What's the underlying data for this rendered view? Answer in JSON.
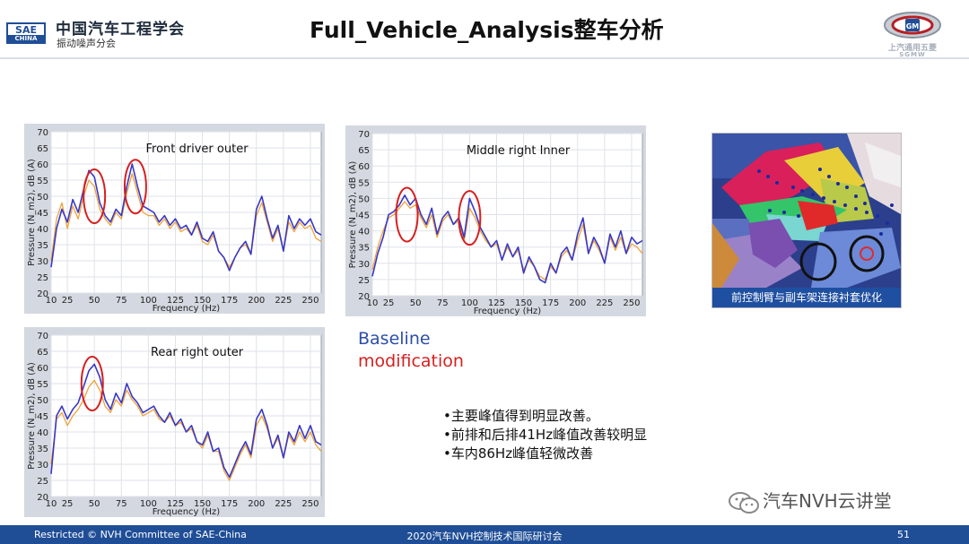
{
  "header": {
    "logo_top": "SAE",
    "logo_bottom": "CHINA",
    "org_name": "中国汽车工程学会",
    "org_sub": "振动噪声分会",
    "title": "Full_Vehicle_Analysis整车分析",
    "brand_cn": "上汽通用五菱",
    "brand_en": "SGMW",
    "brand_badge": "GM"
  },
  "colors": {
    "baseline": "#3838c8",
    "modification": "#f0a23a",
    "highlight_ellipse": "#d62020",
    "footer_bg": "#1f4e96",
    "caption_bg": "#1f4fa0"
  },
  "chart_data": [
    {
      "type": "line",
      "title": "Front driver outer",
      "xlabel": "Frequency (Hz)",
      "ylabel": "Pressure (N_m2), dB (A)",
      "xlim": [
        10,
        260
      ],
      "ylim": [
        20,
        70
      ],
      "xticks": [
        10,
        25,
        50,
        75,
        100,
        125,
        150,
        175,
        200,
        225,
        250
      ],
      "yticks": [
        20,
        25,
        30,
        35,
        40,
        45,
        50,
        55,
        60,
        65,
        70
      ],
      "grid": true,
      "x": [
        10,
        15,
        20,
        25,
        30,
        35,
        40,
        45,
        50,
        55,
        60,
        65,
        70,
        75,
        80,
        85,
        90,
        95,
        100,
        105,
        110,
        115,
        120,
        125,
        130,
        135,
        140,
        145,
        150,
        155,
        160,
        165,
        170,
        175,
        180,
        185,
        190,
        195,
        200,
        205,
        210,
        215,
        220,
        225,
        230,
        235,
        240,
        245,
        250,
        255,
        260
      ],
      "series": [
        {
          "name": "Baseline",
          "values": [
            28,
            40,
            46,
            42,
            49,
            45,
            52,
            58,
            56,
            48,
            44,
            42,
            46,
            44,
            53,
            60,
            53,
            47,
            46,
            45,
            42,
            44,
            41,
            43,
            40,
            41,
            38,
            42,
            37,
            36,
            39,
            33,
            31,
            27,
            31,
            34,
            36,
            32,
            46,
            50,
            43,
            37,
            41,
            33,
            44,
            40,
            43,
            41,
            43,
            39,
            38
          ]
        },
        {
          "name": "Modification",
          "values": [
            30,
            43,
            48,
            40,
            47,
            43,
            50,
            55,
            53,
            46,
            43,
            41,
            45,
            43,
            51,
            57,
            51,
            45,
            44,
            44,
            41,
            43,
            40,
            42,
            39,
            40,
            38,
            41,
            36,
            35,
            38,
            33,
            31,
            28,
            31,
            34,
            35,
            32,
            44,
            48,
            42,
            36,
            40,
            33,
            42,
            39,
            42,
            40,
            41,
            37,
            36
          ]
        }
      ],
      "highlights": [
        [
          50,
          50
        ],
        [
          88,
          53
        ]
      ]
    },
    {
      "type": "line",
      "title": "Middle right Inner",
      "xlabel": "Frequency (Hz)",
      "ylabel": "Pressure (N_m2), dB (A)",
      "xlim": [
        10,
        260
      ],
      "ylim": [
        20,
        70
      ],
      "xticks": [
        10,
        25,
        50,
        75,
        100,
        125,
        150,
        175,
        200,
        225,
        250
      ],
      "yticks": [
        20,
        25,
        30,
        35,
        40,
        45,
        50,
        55,
        60,
        65,
        70
      ],
      "grid": true,
      "x": [
        10,
        15,
        20,
        25,
        30,
        35,
        40,
        45,
        50,
        55,
        60,
        65,
        70,
        75,
        80,
        85,
        90,
        95,
        100,
        105,
        110,
        115,
        120,
        125,
        130,
        135,
        140,
        145,
        150,
        155,
        160,
        165,
        170,
        175,
        180,
        185,
        190,
        195,
        200,
        205,
        210,
        215,
        220,
        225,
        230,
        235,
        240,
        245,
        250,
        255,
        260
      ],
      "series": [
        {
          "name": "Baseline",
          "values": [
            26,
            33,
            38,
            45,
            46,
            48,
            51,
            48,
            50,
            45,
            42,
            47,
            39,
            44,
            46,
            42,
            44,
            38,
            50,
            46,
            41,
            38,
            35,
            37,
            31,
            36,
            32,
            35,
            27,
            32,
            29,
            25,
            24,
            30,
            27,
            33,
            35,
            31,
            39,
            44,
            33,
            38,
            35,
            30,
            39,
            35,
            40,
            33,
            38,
            36,
            37
          ]
        },
        {
          "name": "Modification",
          "values": [
            28,
            35,
            40,
            44,
            45,
            47,
            49,
            47,
            48,
            44,
            41,
            45,
            38,
            43,
            45,
            42,
            43,
            37,
            47,
            44,
            40,
            37,
            35,
            36,
            31,
            35,
            32,
            34,
            28,
            31,
            29,
            26,
            25,
            29,
            27,
            32,
            34,
            31,
            37,
            42,
            33,
            37,
            34,
            30,
            38,
            34,
            38,
            33,
            36,
            35,
            33
          ]
        }
      ],
      "highlights": [
        [
          42,
          45
        ],
        [
          100,
          44
        ]
      ]
    },
    {
      "type": "line",
      "title": "Rear right outer",
      "xlabel": "Frequency (Hz)",
      "ylabel": "Pressure (N_m2), dB (A)",
      "xlim": [
        10,
        260
      ],
      "ylim": [
        20,
        70
      ],
      "xticks": [
        10,
        25,
        50,
        75,
        100,
        125,
        150,
        175,
        200,
        225,
        250
      ],
      "yticks": [
        20,
        25,
        30,
        35,
        40,
        45,
        50,
        55,
        60,
        65,
        70
      ],
      "grid": true,
      "x": [
        10,
        15,
        20,
        25,
        30,
        35,
        40,
        45,
        50,
        55,
        60,
        65,
        70,
        75,
        80,
        85,
        90,
        95,
        100,
        105,
        110,
        115,
        120,
        125,
        130,
        135,
        140,
        145,
        150,
        155,
        160,
        165,
        170,
        175,
        180,
        185,
        190,
        195,
        200,
        205,
        210,
        215,
        220,
        225,
        230,
        235,
        240,
        245,
        250,
        255,
        260
      ],
      "series": [
        {
          "name": "Baseline",
          "values": [
            27,
            45,
            48,
            44,
            47,
            49,
            54,
            59,
            61,
            57,
            50,
            47,
            52,
            49,
            55,
            51,
            49,
            46,
            47,
            48,
            45,
            43,
            46,
            42,
            44,
            40,
            42,
            37,
            36,
            40,
            34,
            35,
            29,
            26,
            30,
            34,
            37,
            33,
            44,
            47,
            42,
            35,
            39,
            32,
            40,
            37,
            42,
            38,
            42,
            37,
            36
          ]
        },
        {
          "name": "Modification",
          "values": [
            30,
            44,
            46,
            42,
            45,
            47,
            50,
            54,
            56,
            53,
            48,
            46,
            50,
            48,
            53,
            50,
            48,
            45,
            46,
            47,
            44,
            43,
            45,
            42,
            43,
            40,
            41,
            37,
            35,
            39,
            34,
            34,
            28,
            25,
            29,
            33,
            36,
            32,
            42,
            45,
            41,
            35,
            38,
            32,
            39,
            36,
            40,
            37,
            40,
            36,
            34
          ]
        }
      ],
      "highlights": [
        [
          48,
          55
        ]
      ]
    }
  ],
  "legend": {
    "baseline": "Baseline",
    "modification": "modification"
  },
  "bullets": [
    "•主要峰值得到明显改善。",
    "•前排和后排41Hz峰值改善较明显",
    "•车内86Hz峰值轻微改善"
  ],
  "cae": {
    "caption": "前控制臂与副车架连接衬套优化"
  },
  "watermark": {
    "text": "汽车NVH云讲堂",
    "icon": "wechat-icon"
  },
  "footer": {
    "left": "Restricted © NVH Committee of SAE-China",
    "center": "2020汽车NVH控制技术国际研讨会",
    "page_number": "51"
  }
}
